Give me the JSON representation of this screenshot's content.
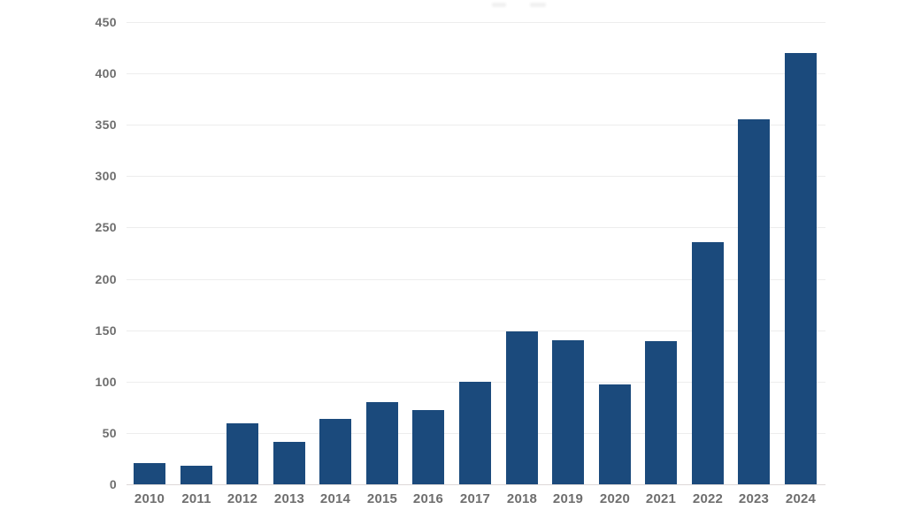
{
  "chart_data": {
    "type": "bar",
    "title": "",
    "categories": [
      "2010",
      "2011",
      "2012",
      "2013",
      "2014",
      "2015",
      "2016",
      "2017",
      "2018",
      "2019",
      "2020",
      "2021",
      "2022",
      "2023",
      "2024"
    ],
    "values": [
      21,
      18,
      59,
      41,
      64,
      80,
      72,
      100,
      149,
      140,
      97,
      139,
      236,
      355,
      420
    ],
    "xlabel": "",
    "ylabel": "",
    "ylim": [
      0,
      450
    ],
    "yticks": [
      0,
      50,
      100,
      150,
      200,
      250,
      300,
      350,
      400,
      450
    ],
    "grid": true,
    "legend": "none",
    "colors": {
      "bar": "#1b4a7c",
      "axis_label": "#6e6e6e",
      "gridline": "#ededed",
      "baseline": "#ddd8d8",
      "background": "#ffffff"
    }
  }
}
